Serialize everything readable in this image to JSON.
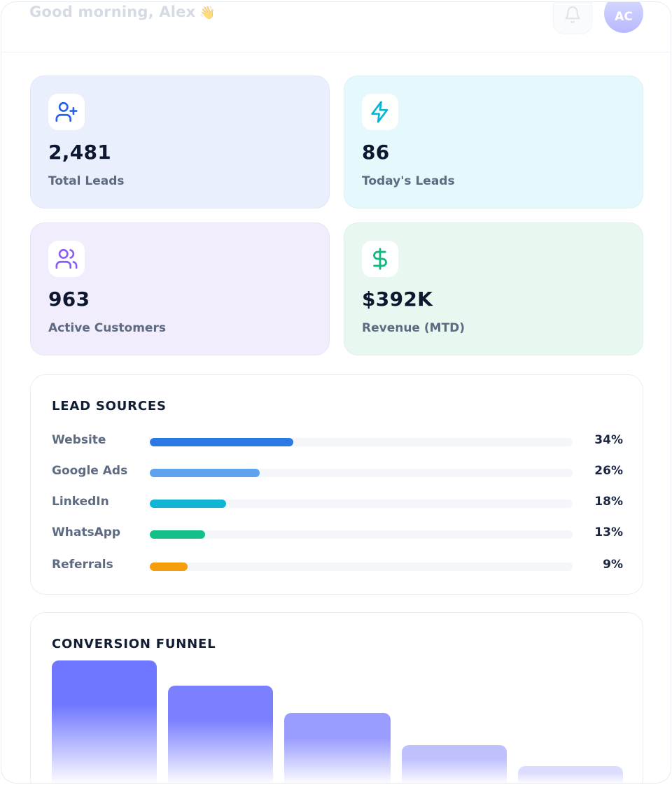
{
  "header": {
    "greeting": "Good morning, Alex",
    "greeting_emoji": "👋",
    "avatar_initials": "AC"
  },
  "stats": [
    {
      "value": "2,481",
      "label": "Total Leads",
      "icon": "user-plus-icon",
      "bg": "#e9effc",
      "icon_color": "#2563eb"
    },
    {
      "value": "86",
      "label": "Today's Leads",
      "icon": "lightning-icon",
      "bg": "#e5f8fb",
      "icon_color": "#06b6d4"
    },
    {
      "value": "963",
      "label": "Active Customers",
      "icon": "users-icon",
      "bg": "#f1edfc",
      "icon_color": "#8b5cf6"
    },
    {
      "value": "$392K",
      "label": "Revenue (MTD)",
      "icon": "dollar-icon",
      "bg": "#e8f8f0",
      "icon_color": "#10b981"
    }
  ],
  "lead_sources": {
    "title": "LEAD SOURCES",
    "items": [
      {
        "name": "Website",
        "percent": 34,
        "percent_label": "34%",
        "color": "#2b7ae4"
      },
      {
        "name": "Google Ads",
        "percent": 26,
        "percent_label": "26%",
        "color": "#5fa3ee"
      },
      {
        "name": "LinkedIn",
        "percent": 18,
        "percent_label": "18%",
        "color": "#0fb5d4"
      },
      {
        "name": "WhatsApp",
        "percent": 13,
        "percent_label": "13%",
        "color": "#14c08a"
      },
      {
        "name": "Referrals",
        "percent": 9,
        "percent_label": "9%",
        "color": "#f59e0b"
      }
    ]
  },
  "conversion_funnel": {
    "title": "CONVERSION FUNNEL",
    "stages": [
      {
        "level": 1.0,
        "color": "#6f76ff"
      },
      {
        "level": 0.8,
        "color": "#7b80ff"
      },
      {
        "level": 0.58,
        "color": "#9a9dff"
      },
      {
        "level": 0.32,
        "color": "#bfc1ff"
      },
      {
        "level": 0.15,
        "color": "#dcdcff"
      }
    ]
  }
}
